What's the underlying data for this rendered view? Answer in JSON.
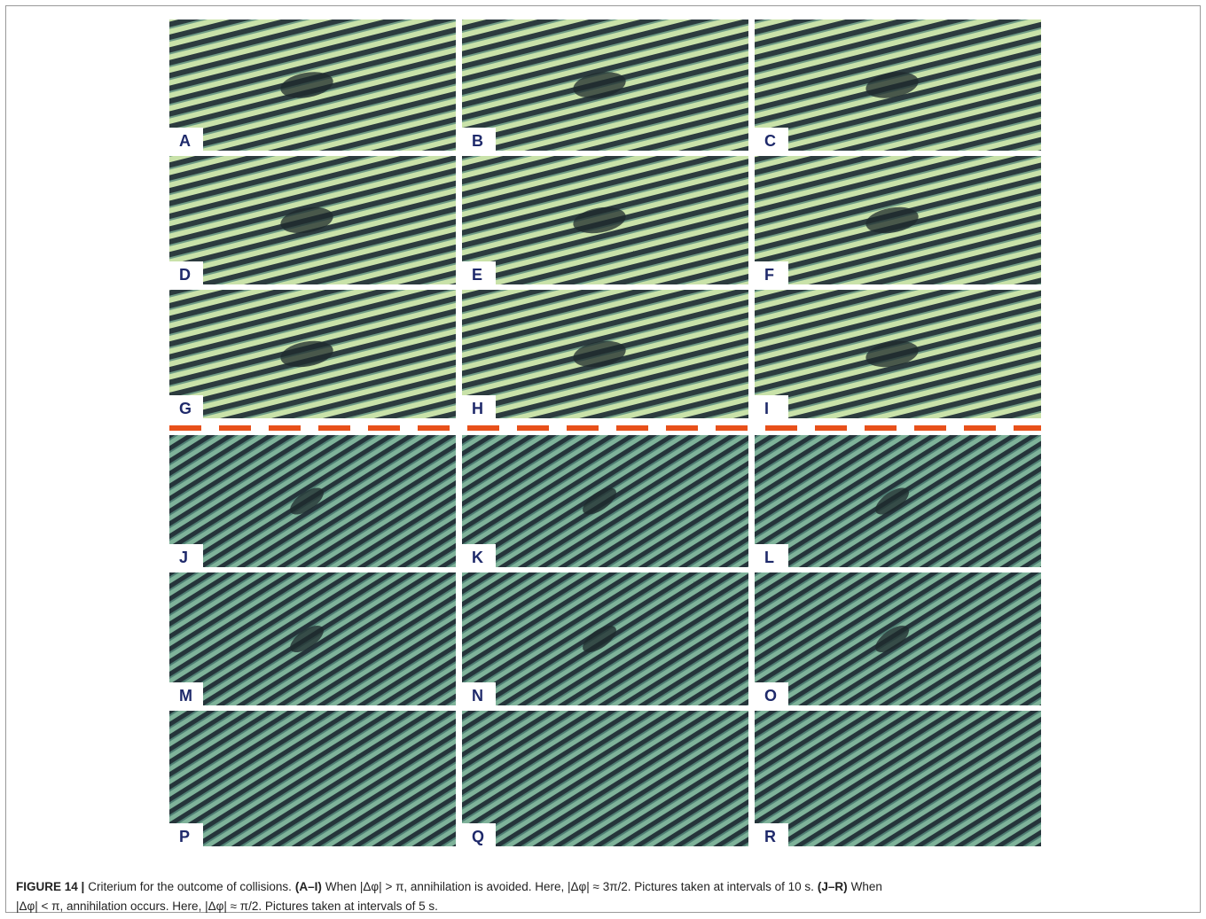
{
  "panels": [
    {
      "label": "A"
    },
    {
      "label": "B"
    },
    {
      "label": "C"
    },
    {
      "label": "D"
    },
    {
      "label": "E"
    },
    {
      "label": "F"
    },
    {
      "label": "G"
    },
    {
      "label": "H"
    },
    {
      "label": "I"
    },
    {
      "label": "J"
    },
    {
      "label": "K"
    },
    {
      "label": "L"
    },
    {
      "label": "M"
    },
    {
      "label": "N"
    },
    {
      "label": "O"
    },
    {
      "label": "P"
    },
    {
      "label": "Q"
    },
    {
      "label": "R"
    }
  ],
  "caption": {
    "lines": [
      [
        {
          "text": "FIGURE 14 |",
          "bold": true
        },
        {
          "text": "Criterium for the outcome of collisions."
        },
        {
          "text": "(A–I)",
          "bold": true
        },
        {
          "text": "When |Δφ| > π, annihilation is avoided. Here, |Δφ| ≈ 3π/2. Pictures taken at intervals of 10 s."
        },
        {
          "text": "(J–R)",
          "bold": true
        },
        {
          "text": "When"
        }
      ],
      [
        {
          "text": "|Δφ| < π, annihilation occurs. Here, |Δφ| ≈ π/2. Pictures taken at intervals of 5 s."
        }
      ]
    ]
  }
}
